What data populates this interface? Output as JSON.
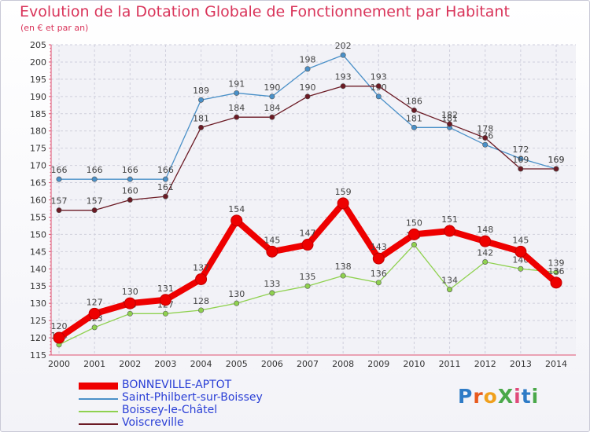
{
  "title": "Evolution de la Dotation Globale de Fonctionnement par Habitant",
  "subtitle": "(en € et par an)",
  "logo": {
    "text": "ProXiti",
    "colors": [
      "#2e7bc6",
      "#e85a1d",
      "#f0a01d",
      "#4aa84a",
      "#e04a7a",
      "#2e7bc6",
      "#4aa84a"
    ]
  },
  "chart_data": {
    "type": "line",
    "title": "Evolution de la Dotation Globale de Fonctionnement par Habitant",
    "subtitle": "(en € et par an)",
    "x": [
      "2000",
      "2001",
      "2002",
      "2003",
      "2004",
      "2005",
      "2006",
      "2007",
      "2008",
      "2009",
      "2010",
      "2011",
      "2012",
      "2013",
      "2014"
    ],
    "ylim": [
      115,
      205
    ],
    "yticks": [
      115,
      120,
      125,
      130,
      135,
      140,
      145,
      150,
      155,
      160,
      165,
      170,
      175,
      180,
      185,
      190,
      195,
      200,
      205
    ],
    "grid": true,
    "legend_position": "bottom-left",
    "series": [
      {
        "name": "BONNEVILLE-APTOT",
        "color": "#ee0000",
        "values": [
          120,
          127,
          130,
          131,
          137,
          154,
          145,
          147,
          159,
          143,
          150,
          151,
          148,
          145,
          136
        ]
      },
      {
        "name": "Saint-Philbert-sur-Boissey",
        "color": "#4a90c8",
        "values": [
          166,
          166,
          166,
          166,
          189,
          191,
          190,
          198,
          202,
          190,
          181,
          181,
          176,
          172,
          169
        ]
      },
      {
        "name": "Boissey-le-Châtel",
        "color": "#8fd14f",
        "values": [
          118,
          123,
          127,
          127,
          128,
          130,
          133,
          135,
          138,
          136,
          147,
          134,
          142,
          140,
          139
        ]
      },
      {
        "name": "Voiscreville",
        "color": "#6b1a24",
        "values": [
          157,
          157,
          160,
          161,
          181,
          184,
          184,
          190,
          193,
          193,
          186,
          182,
          178,
          169,
          169
        ]
      }
    ]
  }
}
